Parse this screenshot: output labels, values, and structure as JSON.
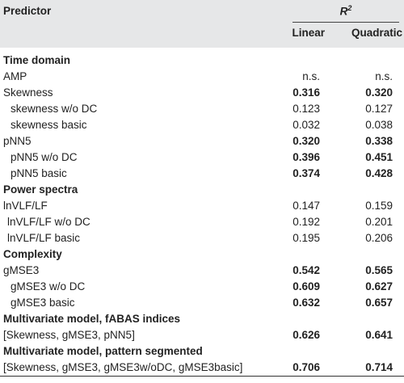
{
  "header": {
    "predictor": "Predictor",
    "r2_main": "R",
    "r2_sup": "2",
    "linear": "Linear",
    "quadratic": "Quadratic"
  },
  "sections": {
    "time_domain": "Time domain",
    "power_spectra": "Power spectra",
    "complexity": "Complexity",
    "multi_fabas": "Multivariate model, fABAS indices",
    "multi_pattern": "Multivariate model, pattern segmented"
  },
  "rows": {
    "amp": {
      "label": "AMP",
      "linear": "n.s.",
      "quadratic": "n.s."
    },
    "skew": {
      "label": "Skewness",
      "linear": "0.316",
      "quadratic": "0.320"
    },
    "skew_wodc": {
      "label": "skewness w/o DC",
      "linear": "0.123",
      "quadratic": "0.127"
    },
    "skew_basic": {
      "label": "skewness basic",
      "linear": "0.032",
      "quadratic": "0.038"
    },
    "pnn5": {
      "label": "pNN5",
      "linear": "0.320",
      "quadratic": "0.338"
    },
    "pnn5_wodc": {
      "label": "pNN5 w/o DC",
      "linear": "0.396",
      "quadratic": "0.451"
    },
    "pnn5_basic": {
      "label": "pNN5 basic",
      "linear": "0.374",
      "quadratic": "0.428"
    },
    "lnvlf": {
      "label": "lnVLF/LF",
      "linear": "0.147",
      "quadratic": "0.159"
    },
    "lnvlf_wodc": {
      "label": "lnVLF/LF w/o DC",
      "linear": "0.192",
      "quadratic": "0.201"
    },
    "lnvlf_basic": {
      "label": "lnVLF/LF basic",
      "linear": "0.195",
      "quadratic": "0.206"
    },
    "gmse3": {
      "label": "gMSE3",
      "linear": "0.542",
      "quadratic": "0.565"
    },
    "gmse3_wodc": {
      "label": "gMSE3 w/o DC",
      "linear": "0.609",
      "quadratic": "0.627"
    },
    "gmse3_basic": {
      "label": "gMSE3 basic",
      "linear": "0.632",
      "quadratic": "0.657"
    },
    "multi1": {
      "label": "[Skewness, gMSE3, pNN5]",
      "linear": "0.626",
      "quadratic": "0.641"
    },
    "multi2": {
      "label": "[Skewness, gMSE3, gMSE3w/oDC, gMSE3basic]",
      "linear": "0.706",
      "quadratic": "0.714"
    }
  }
}
